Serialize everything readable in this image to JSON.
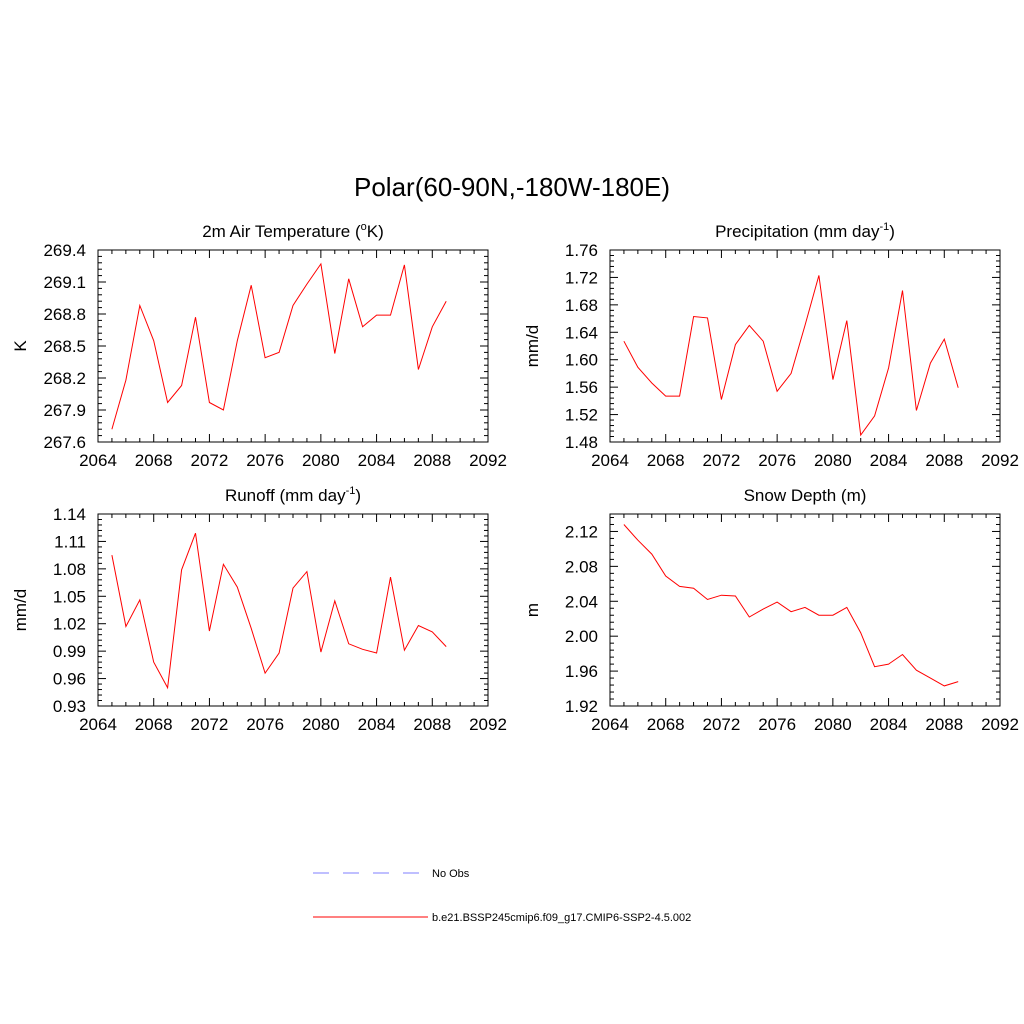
{
  "figure_title": "Polar(60-90N,-180W-180E)",
  "colors": {
    "model_line": "#ff0000",
    "obs_line": "#9999ff",
    "axis": "#000000"
  },
  "legend": {
    "obs_label": "No Obs",
    "model_label": "b.e21.BSSP245cmip6.f09_g17.CMIP6-SSP2-4.5.002"
  },
  "chart_data": [
    {
      "type": "line",
      "title": "2m Air Temperature (",
      "title_sup": "o",
      "title_post": "K)",
      "ylabel": "K",
      "xlim": [
        2064,
        2092
      ],
      "ylim": [
        267.6,
        269.4
      ],
      "xticks": [
        "2064",
        "2068",
        "2072",
        "2076",
        "2080",
        "2084",
        "2088",
        "2092"
      ],
      "yticks": [
        "267.6",
        "267.9",
        "268.2",
        "268.5",
        "268.8",
        "269.1",
        "269.4"
      ],
      "x": [
        2065,
        2066,
        2067,
        2068,
        2069,
        2070,
        2071,
        2072,
        2073,
        2074,
        2075,
        2076,
        2077,
        2078,
        2079,
        2080,
        2081,
        2082,
        2083,
        2084,
        2085,
        2086,
        2087,
        2088,
        2089
      ],
      "values": [
        267.72,
        268.18,
        268.88,
        268.55,
        267.97,
        268.13,
        268.77,
        267.97,
        267.9,
        268.55,
        269.07,
        268.39,
        268.44,
        268.88,
        269.08,
        269.27,
        268.43,
        269.13,
        268.68,
        268.79,
        268.79,
        269.26,
        268.28,
        268.68,
        268.92
      ]
    },
    {
      "type": "line",
      "title": "Precipitation (mm day",
      "title_sup": "-1",
      "title_post": ")",
      "ylabel": "mm/d",
      "xlim": [
        2064,
        2092
      ],
      "ylim": [
        1.48,
        1.76
      ],
      "xticks": [
        "2064",
        "2068",
        "2072",
        "2076",
        "2080",
        "2084",
        "2088",
        "2092"
      ],
      "yticks": [
        "1.48",
        "1.52",
        "1.56",
        "1.60",
        "1.64",
        "1.68",
        "1.72",
        "1.76"
      ],
      "x": [
        2065,
        2066,
        2067,
        2068,
        2069,
        2070,
        2071,
        2072,
        2073,
        2074,
        2075,
        2076,
        2077,
        2078,
        2079,
        2080,
        2081,
        2082,
        2083,
        2084,
        2085,
        2086,
        2087,
        2088,
        2089
      ],
      "values": [
        1.627,
        1.589,
        1.566,
        1.547,
        1.547,
        1.663,
        1.661,
        1.542,
        1.622,
        1.65,
        1.627,
        1.554,
        1.58,
        1.65,
        1.723,
        1.571,
        1.657,
        1.49,
        1.518,
        1.588,
        1.701,
        1.526,
        1.595,
        1.63,
        1.559
      ]
    },
    {
      "type": "line",
      "title": "Runoff (mm day",
      "title_sup": "-1",
      "title_post": ")",
      "ylabel": "mm/d",
      "xlim": [
        2064,
        2092
      ],
      "ylim": [
        0.93,
        1.14
      ],
      "xticks": [
        "2064",
        "2068",
        "2072",
        "2076",
        "2080",
        "2084",
        "2088",
        "2092"
      ],
      "yticks": [
        "0.93",
        "0.96",
        "0.99",
        "1.02",
        "1.05",
        "1.08",
        "1.11",
        "1.14"
      ],
      "x": [
        2065,
        2066,
        2067,
        2068,
        2069,
        2070,
        2071,
        2072,
        2073,
        2074,
        2075,
        2076,
        2077,
        2078,
        2079,
        2080,
        2081,
        2082,
        2083,
        2084,
        2085,
        2086,
        2087,
        2088,
        2089
      ],
      "values": [
        1.095,
        1.017,
        1.046,
        0.978,
        0.95,
        1.079,
        1.119,
        1.012,
        1.085,
        1.06,
        1.015,
        0.966,
        0.988,
        1.059,
        1.077,
        0.989,
        1.045,
        0.998,
        0.992,
        0.988,
        1.071,
        0.991,
        1.018,
        1.011,
        0.995
      ]
    },
    {
      "type": "line",
      "title": "Snow Depth (m)",
      "title_sup": "",
      "title_post": "",
      "ylabel": "m",
      "xlim": [
        2064,
        2092
      ],
      "ylim": [
        1.92,
        2.14
      ],
      "xticks": [
        "2064",
        "2068",
        "2072",
        "2076",
        "2080",
        "2084",
        "2088",
        "2092"
      ],
      "yticks": [
        "1.92",
        "1.96",
        "2.00",
        "2.04",
        "2.08",
        "2.12"
      ],
      "x": [
        2065,
        2066,
        2067,
        2068,
        2069,
        2070,
        2071,
        2072,
        2073,
        2074,
        2075,
        2076,
        2077,
        2078,
        2079,
        2080,
        2081,
        2082,
        2083,
        2084,
        2085,
        2086,
        2087,
        2088,
        2089
      ],
      "values": [
        2.128,
        2.11,
        2.094,
        2.069,
        2.057,
        2.055,
        2.042,
        2.047,
        2.046,
        2.022,
        2.031,
        2.039,
        2.028,
        2.033,
        2.024,
        2.024,
        2.033,
        2.004,
        1.965,
        1.968,
        1.979,
        1.961,
        1.952,
        1.943,
        1.948
      ]
    }
  ]
}
